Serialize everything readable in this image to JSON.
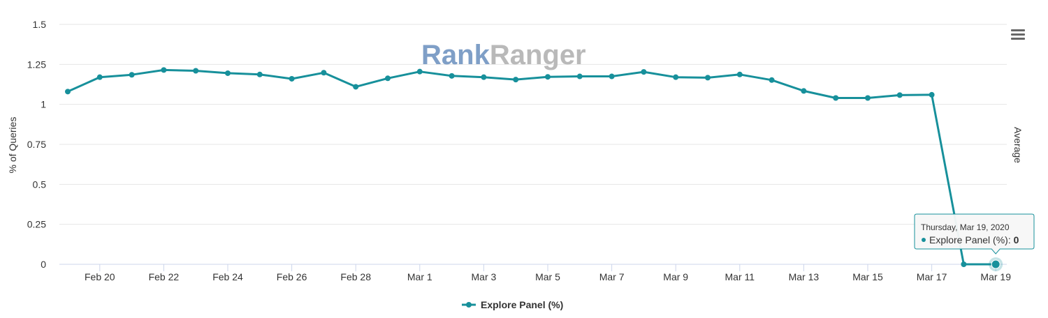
{
  "watermark": {
    "part1": "Rank",
    "part2": "Ranger",
    "color1": "#7f9fc7",
    "color2": "#b9b9b9"
  },
  "menu_icon": "hamburger-menu-icon",
  "colors": {
    "series": "#17909b",
    "grid": "#e6e6e6",
    "axis": "#ccd6eb"
  },
  "chart_data": {
    "type": "line",
    "title": "",
    "xlabel": "",
    "ylabel": "% of Queries",
    "right_label": "Average",
    "ylim": [
      0,
      1.5
    ],
    "yticks": [
      "0",
      "0.25",
      "0.5",
      "0.75",
      "1",
      "1.25",
      "1.5"
    ],
    "ytick_values": [
      0,
      0.25,
      0.5,
      0.75,
      1,
      1.25,
      1.5
    ],
    "x": [
      "Feb 19",
      "Feb 20",
      "Feb 21",
      "Feb 22",
      "Feb 23",
      "Feb 24",
      "Feb 25",
      "Feb 26",
      "Feb 27",
      "Feb 28",
      "Feb 29",
      "Mar 1",
      "Mar 2",
      "Mar 3",
      "Mar 4",
      "Mar 5",
      "Mar 6",
      "Mar 7",
      "Mar 8",
      "Mar 9",
      "Mar 10",
      "Mar 11",
      "Mar 12",
      "Mar 13",
      "Mar 14",
      "Mar 15",
      "Mar 16",
      "Mar 17",
      "Mar 18",
      "Mar 19"
    ],
    "xtick_labels": [
      "Feb 20",
      "Feb 22",
      "Feb 24",
      "Feb 26",
      "Feb 28",
      "Mar 1",
      "Mar 3",
      "Mar 5",
      "Mar 7",
      "Mar 9",
      "Mar 11",
      "Mar 13",
      "Mar 15",
      "Mar 17",
      "Mar 19"
    ],
    "xtick_indices": [
      1,
      3,
      5,
      7,
      9,
      11,
      13,
      15,
      17,
      19,
      21,
      23,
      25,
      27,
      29
    ],
    "series": [
      {
        "name": "Explore Panel (%)",
        "values": [
          1.08,
          1.17,
          1.185,
          1.215,
          1.21,
          1.195,
          1.187,
          1.16,
          1.198,
          1.11,
          1.163,
          1.205,
          1.178,
          1.17,
          1.155,
          1.172,
          1.175,
          1.175,
          1.203,
          1.17,
          1.167,
          1.187,
          1.152,
          1.084,
          1.04,
          1.04,
          1.058,
          1.06,
          0,
          0
        ]
      }
    ],
    "legend": [
      "Explore Panel (%)"
    ],
    "grid": true,
    "tooltip": {
      "index": 29,
      "date": "Thursday, Mar 19, 2020",
      "series": "Explore Panel (%)",
      "separator": ": ",
      "value": "0"
    }
  }
}
